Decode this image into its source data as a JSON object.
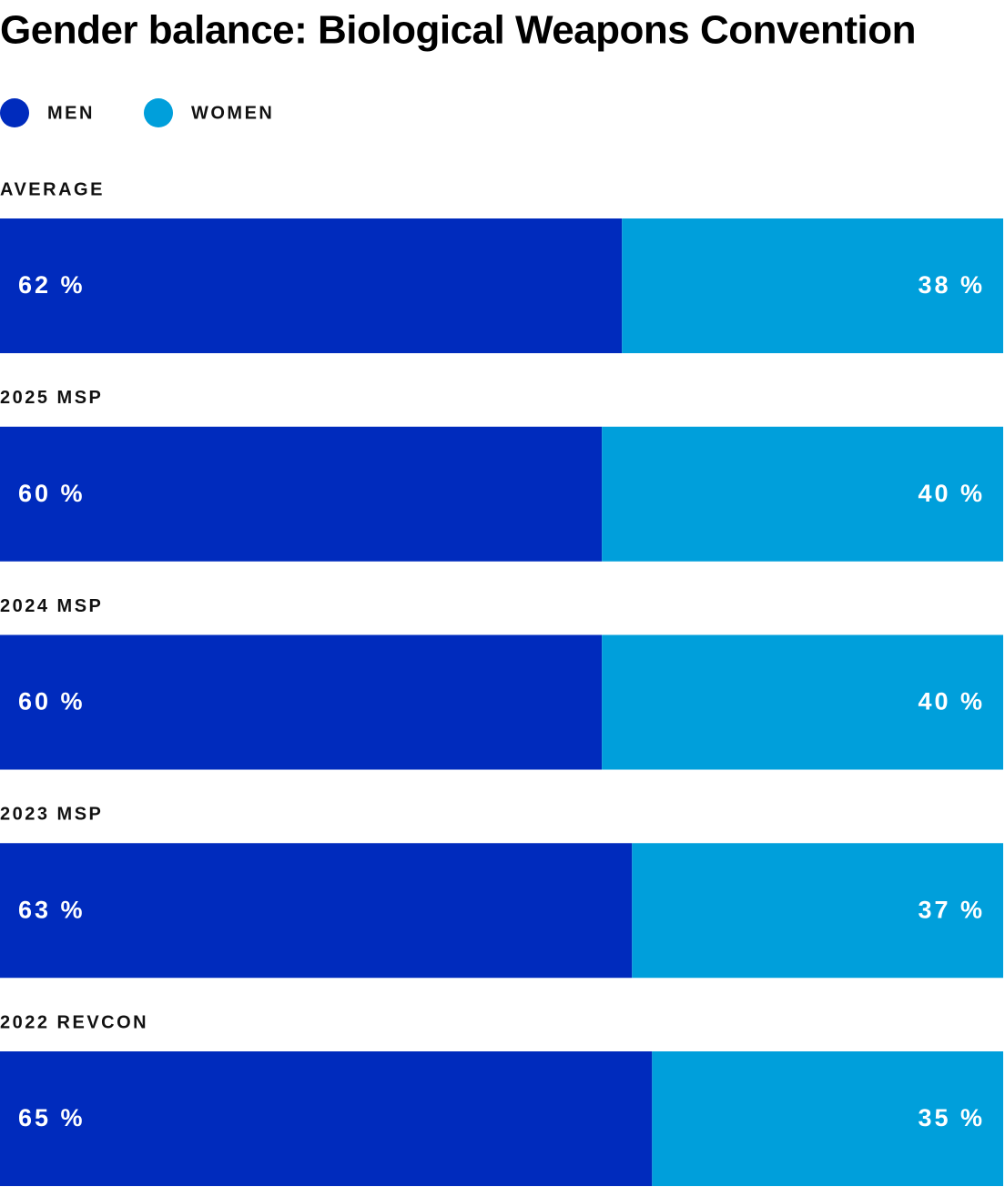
{
  "chart_data": {
    "type": "stacked-bar-horizontal",
    "title": "Gender balance: Biological Weapons Convention",
    "categories": [
      "AVERAGE",
      "2025 MSP",
      "2024 MSP",
      "2023 MSP",
      "2022 REVCON"
    ],
    "xlim": [
      0,
      100
    ],
    "series": [
      {
        "name": "MEN",
        "color": "#002bbd",
        "values": [
          62,
          60,
          60,
          63,
          65
        ],
        "value_labels": [
          "62 %",
          "60 %",
          "60 %",
          "63 %",
          "65 %"
        ]
      },
      {
        "name": "WOMEN",
        "color": "#009fdb",
        "values": [
          38,
          40,
          40,
          37,
          35
        ],
        "value_labels": [
          "38 %",
          "40 %",
          "40 %",
          "37 %",
          "35 %"
        ]
      }
    ]
  }
}
